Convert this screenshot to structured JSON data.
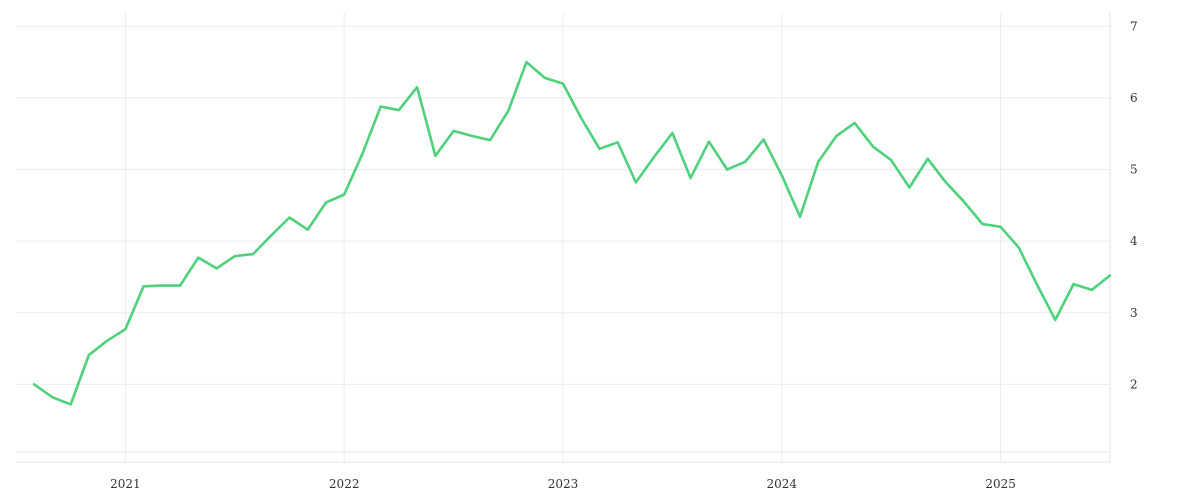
{
  "chart_data": {
    "type": "line",
    "title": "",
    "xlabel": "",
    "ylabel": "",
    "x_ticks": [
      "2021",
      "2022",
      "2023",
      "2024",
      "2025"
    ],
    "y_ticks": [
      2,
      3,
      4,
      5,
      6,
      7
    ],
    "ylim": [
      1,
      7.2
    ],
    "xlim": [
      "2020-07",
      "2025-07"
    ],
    "y_axis_position": "right",
    "grid": true,
    "legend": "none",
    "series": [
      {
        "color": "#4fd17b",
        "x": [
          "2020-08",
          "2020-09",
          "2020-10",
          "2020-11",
          "2020-12",
          "2021-01",
          "2021-02",
          "2021-03",
          "2021-04",
          "2021-05",
          "2021-06",
          "2021-07",
          "2021-08",
          "2021-09",
          "2021-10",
          "2021-11",
          "2021-12",
          "2022-01",
          "2022-02",
          "2022-03",
          "2022-04",
          "2022-05",
          "2022-06",
          "2022-07",
          "2022-08",
          "2022-09",
          "2022-10",
          "2022-11",
          "2022-12",
          "2023-01",
          "2023-02",
          "2023-03",
          "2023-04",
          "2023-05",
          "2023-06",
          "2023-07",
          "2023-08",
          "2023-09",
          "2023-10",
          "2023-11",
          "2023-12",
          "2024-01",
          "2024-02",
          "2024-03",
          "2024-04",
          "2024-05",
          "2024-06",
          "2024-07",
          "2024-08",
          "2024-09",
          "2024-10",
          "2024-11",
          "2024-12",
          "2025-01",
          "2025-02",
          "2025-03",
          "2025-04",
          "2025-05",
          "2025-06",
          "2025-07"
        ],
        "values": [
          2.0,
          1.82,
          1.72,
          2.41,
          2.61,
          2.77,
          3.37,
          3.38,
          3.38,
          3.77,
          3.62,
          3.79,
          3.82,
          4.08,
          4.33,
          4.16,
          4.54,
          4.65,
          5.22,
          5.88,
          5.83,
          6.15,
          5.19,
          5.54,
          5.47,
          5.41,
          5.82,
          6.5,
          6.28,
          6.2,
          5.72,
          5.29,
          5.38,
          4.82,
          5.18,
          5.51,
          4.88,
          5.39,
          5.0,
          5.11,
          5.42,
          4.92,
          4.34,
          5.11,
          5.47,
          5.65,
          5.32,
          5.13,
          4.75,
          5.15,
          4.82,
          4.55,
          4.24,
          4.2,
          3.91,
          3.39,
          2.9,
          3.4,
          3.32,
          3.52
        ]
      }
    ]
  }
}
